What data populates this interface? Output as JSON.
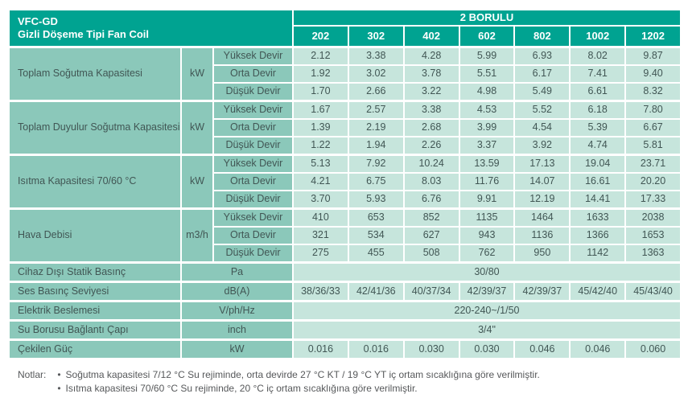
{
  "title": {
    "line1": "VFC-GD",
    "line2": "Gizli Döşeme Tipi Fan Coil"
  },
  "header": {
    "group": "2 BORULU",
    "models": [
      "202",
      "302",
      "402",
      "602",
      "802",
      "1002",
      "1202"
    ]
  },
  "speed_labels": [
    "Yüksek Devir",
    "Orta Devir",
    "Düşük Devir"
  ],
  "blocks": [
    {
      "label": "Toplam Soğutma Kapasitesi",
      "unit": "kW",
      "rows": [
        [
          "2.12",
          "3.38",
          "4.28",
          "5.99",
          "6.93",
          "8.02",
          "9.87"
        ],
        [
          "1.92",
          "3.02",
          "3.78",
          "5.51",
          "6.17",
          "7.41",
          "9.40"
        ],
        [
          "1.70",
          "2.66",
          "3.22",
          "4.98",
          "5.49",
          "6.61",
          "8.32"
        ]
      ]
    },
    {
      "label": "Toplam Duyulur Soğutma Kapasitesi",
      "unit": "kW",
      "rows": [
        [
          "1.67",
          "2.57",
          "3.38",
          "4.53",
          "5.52",
          "6.18",
          "7.80"
        ],
        [
          "1.39",
          "2.19",
          "2.68",
          "3.99",
          "4.54",
          "5.39",
          "6.67"
        ],
        [
          "1.22",
          "1.94",
          "2.26",
          "3.37",
          "3.92",
          "4.74",
          "5.81"
        ]
      ]
    },
    {
      "label": "Isıtma Kapasitesi  70/60 °C",
      "unit": "kW",
      "rows": [
        [
          "5.13",
          "7.92",
          "10.24",
          "13.59",
          "17.13",
          "19.04",
          "23.71"
        ],
        [
          "4.21",
          "6.75",
          "8.03",
          "11.76",
          "14.07",
          "16.61",
          "20.20"
        ],
        [
          "3.70",
          "5.93",
          "6.76",
          "9.91",
          "12.19",
          "14.41",
          "17.33"
        ]
      ]
    },
    {
      "label": "Hava Debisi",
      "unit": "m3/h",
      "rows": [
        [
          "410",
          "653",
          "852",
          "1135",
          "1464",
          "1633",
          "2038"
        ],
        [
          "321",
          "534",
          "627",
          "943",
          "1136",
          "1366",
          "1653"
        ],
        [
          "275",
          "455",
          "508",
          "762",
          "950",
          "1142",
          "1363"
        ]
      ]
    }
  ],
  "simple_rows": [
    {
      "label": "Cihaz Dışı Statik Basınç",
      "unit": "Pa",
      "span": "30/80"
    },
    {
      "label": "Ses Basınç Seviyesi",
      "unit": "dB(A)",
      "values": [
        "38/36/33",
        "42/41/36",
        "40/37/34",
        "42/39/37",
        "42/39/37",
        "45/42/40",
        "45/43/40"
      ]
    },
    {
      "label": "Elektrik Beslemesi",
      "unit": "V/ph/Hz",
      "span": "220-240~/1/50"
    },
    {
      "label": "Su Borusu Bağlantı Çapı",
      "unit": "inch",
      "span": "3/4\""
    },
    {
      "label": "Çekilen Güç",
      "unit": "kW",
      "values": [
        "0.016",
        "0.016",
        "0.030",
        "0.030",
        "0.046",
        "0.046",
        "0.060"
      ]
    }
  ],
  "notes": {
    "label": "Notlar:",
    "bullet": "•",
    "items": [
      "Soğutma kapasitesi 7/12 °C Su rejiminde, orta devirde 27 °C KT / 19 °C YT iç ortam sıcaklığına göre verilmiştir.",
      "Isıtma kapasitesi 70/60 °C Su rejiminde, 20 °C iç ortam sıcaklığına göre verilmiştir."
    ]
  },
  "colors": {
    "header_teal": "#00a391",
    "label_teal": "#8bc8ba",
    "cell_teal": "#c6e5dc",
    "text": "#415654"
  }
}
